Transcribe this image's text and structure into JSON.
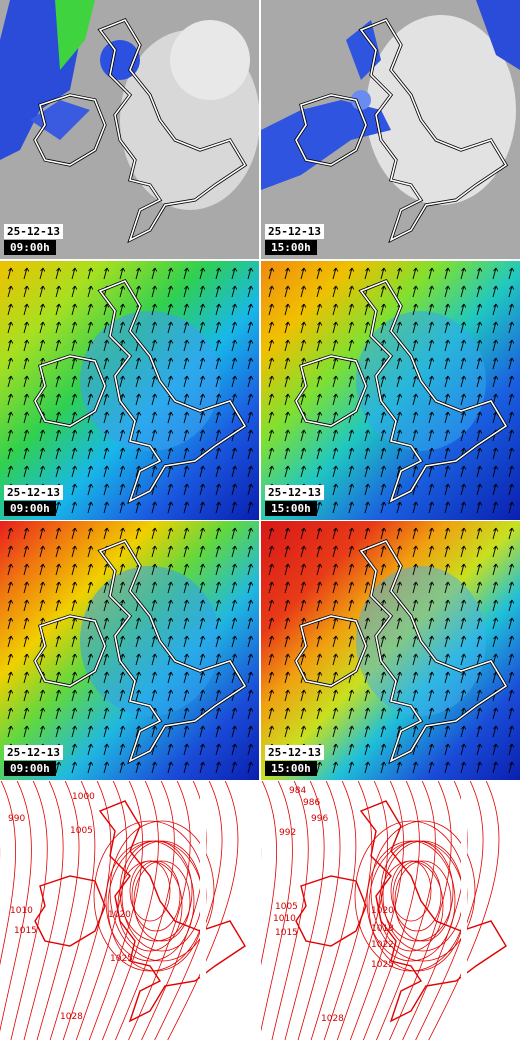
{
  "panels": [
    {
      "id": "cloud-0900",
      "layer": "cloud",
      "date": "25-12-13",
      "time": "09:00h"
    },
    {
      "id": "cloud-1500",
      "layer": "cloud",
      "date": "25-12-13",
      "time": "15:00h"
    },
    {
      "id": "wind-0900",
      "layer": "wind",
      "date": "25-12-13",
      "time": "09:00h"
    },
    {
      "id": "wind-1500",
      "layer": "wind",
      "date": "25-12-13",
      "time": "15:00h"
    },
    {
      "id": "gust-0900",
      "layer": "gust",
      "date": "25-12-13",
      "time": "09:00h"
    },
    {
      "id": "gust-1500",
      "layer": "gust",
      "date": "25-12-13",
      "time": "15:00h"
    },
    {
      "id": "pressure-0900",
      "layer": "pressure",
      "labels": [
        "990",
        "1000",
        "1005",
        "1010",
        "1015",
        "1020",
        "1025",
        "1028"
      ]
    },
    {
      "id": "pressure-1500",
      "layer": "pressure",
      "labels": [
        "984",
        "986",
        "992",
        "996",
        "1005",
        "1010",
        "1015",
        "1018",
        "1020",
        "1022",
        "1025",
        "1028"
      ]
    }
  ],
  "colors": {
    "coast": "#ffffff",
    "coast_outline": "#000000",
    "isobar": "#e00000",
    "cloud_base": "#b8b8b8",
    "wind_low": "#0a1fb0",
    "wind_high": "#e81e1e"
  }
}
